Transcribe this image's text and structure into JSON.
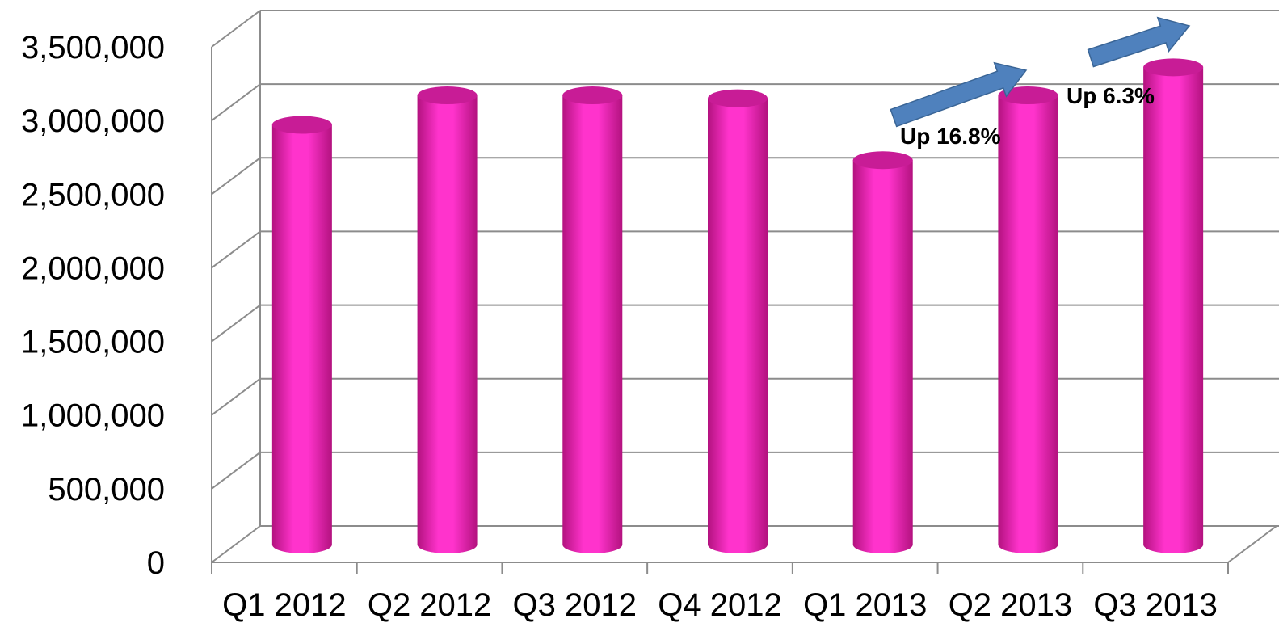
{
  "chart_data": {
    "type": "bar",
    "style": "3d-cylinder",
    "title": "",
    "xlabel": "",
    "ylabel": "",
    "categories": [
      "Q1 2012",
      "Q2 2012",
      "Q3 2012",
      "Q4 2012",
      "Q1 2013",
      "Q2 2013",
      "Q3 2013"
    ],
    "series": [
      {
        "values": [
          2850000,
          3050000,
          3050000,
          3030000,
          2610000,
          3050000,
          3240000
        ]
      }
    ],
    "ylim": [
      0,
      3500000
    ],
    "yticks": [
      "0",
      "500,000",
      "1,000,000",
      "1,500,000",
      "2,000,000",
      "2,500,000",
      "3,000,000",
      "3,500,000"
    ],
    "grid": true,
    "legend": "none",
    "annotations": [
      {
        "text": "Up 16.8%",
        "from": "Q1 2013",
        "to": "Q2 2013",
        "shape": "arrow-up-right"
      },
      {
        "text": "Up 6.3%",
        "from": "Q2 2013",
        "to": "Q3 2013",
        "shape": "arrow-up-right"
      }
    ],
    "colors": {
      "bar": "#ff33cc",
      "bar_dark": "#b3127f",
      "bar_top": "#c81c96",
      "arrow": "#4f81bd",
      "grid": "#8c8c8c"
    }
  }
}
